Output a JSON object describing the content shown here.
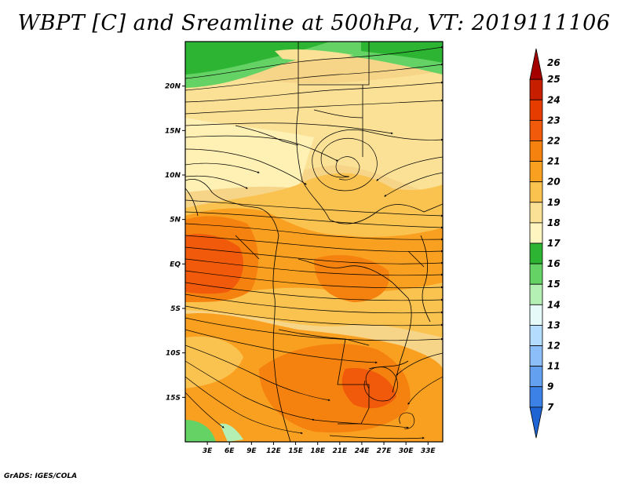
{
  "title": "WBPT [C] and Sreamline at 500hPa, VT: 2019111106",
  "credit": "GrADS: IGES/COLA",
  "map": {
    "lon_range": [
      0,
      35
    ],
    "lat_range": [
      -20,
      25
    ],
    "lon_ticks": [
      {
        "value": 3,
        "label": "3E"
      },
      {
        "value": 6,
        "label": "6E"
      },
      {
        "value": 9,
        "label": "9E"
      },
      {
        "value": 12,
        "label": "12E"
      },
      {
        "value": 15,
        "label": "15E"
      },
      {
        "value": 18,
        "label": "18E"
      },
      {
        "value": 21,
        "label": "21E"
      },
      {
        "value": 24,
        "label": "24E"
      },
      {
        "value": 27,
        "label": "27E"
      },
      {
        "value": 30,
        "label": "30E"
      },
      {
        "value": 33,
        "label": "33E"
      }
    ],
    "lat_ticks": [
      {
        "value": 20,
        "label": "20N"
      },
      {
        "value": 15,
        "label": "15N"
      },
      {
        "value": 10,
        "label": "10N"
      },
      {
        "value": 5,
        "label": "5N"
      },
      {
        "value": 0,
        "label": "EQ"
      },
      {
        "value": -5,
        "label": "5S"
      },
      {
        "value": -10,
        "label": "10S"
      },
      {
        "value": -15,
        "label": "15S"
      }
    ]
  },
  "colorbar": {
    "levels": [
      {
        "label": "26",
        "color": "#a50000"
      },
      {
        "label": "25",
        "color": "#c81e00"
      },
      {
        "label": "24",
        "color": "#e63c00"
      },
      {
        "label": "23",
        "color": "#f05a0a"
      },
      {
        "label": "22",
        "color": "#f5820f"
      },
      {
        "label": "21",
        "color": "#faa020"
      },
      {
        "label": "20",
        "color": "#fac350"
      },
      {
        "label": "19",
        "color": "#fae196"
      },
      {
        "label": "18",
        "color": "#fff5c0"
      },
      {
        "label": "17",
        "color": "#2db432"
      },
      {
        "label": "16",
        "color": "#64d264"
      },
      {
        "label": "15",
        "color": "#b4f0b4"
      },
      {
        "label": "14",
        "color": "#e6fafa"
      },
      {
        "label": "13",
        "color": "#b4dcff"
      },
      {
        "label": "12",
        "color": "#8cbefa"
      },
      {
        "label": "11",
        "color": "#64a0f0"
      },
      {
        "label": "9",
        "color": "#3c82e6"
      },
      {
        "label": "7",
        "color": "#1e64d2"
      }
    ]
  }
}
